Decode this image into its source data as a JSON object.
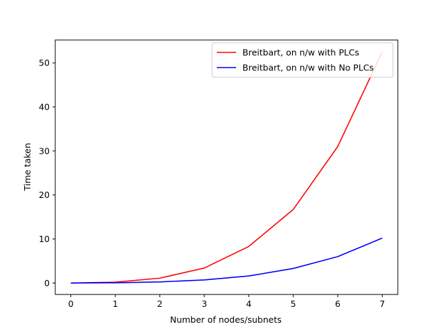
{
  "chart_data": {
    "type": "line",
    "title": "",
    "xlabel": "Number of nodes/subnets",
    "ylabel": "Time taken",
    "x": [
      0,
      1,
      2,
      3,
      4,
      5,
      6,
      7
    ],
    "xlim": [
      -0.35,
      7.35
    ],
    "ylim": [
      -2.6,
      55.2
    ],
    "xticks": [
      0,
      1,
      2,
      3,
      4,
      5,
      6,
      7
    ],
    "yticks": [
      0,
      10,
      20,
      30,
      40,
      50
    ],
    "grid": false,
    "legend_position": "top-right",
    "series": [
      {
        "name": "Breitbart, on n/w with PLCs",
        "color": "#ff0000",
        "values": [
          0.0,
          0.2,
          1.1,
          3.4,
          8.3,
          16.7,
          31.0,
          52.5
        ]
      },
      {
        "name": "Breitbart, on n/w with No PLCs",
        "color": "#0000ff",
        "values": [
          0.0,
          0.05,
          0.25,
          0.7,
          1.6,
          3.3,
          6.0,
          10.2
        ]
      }
    ]
  }
}
